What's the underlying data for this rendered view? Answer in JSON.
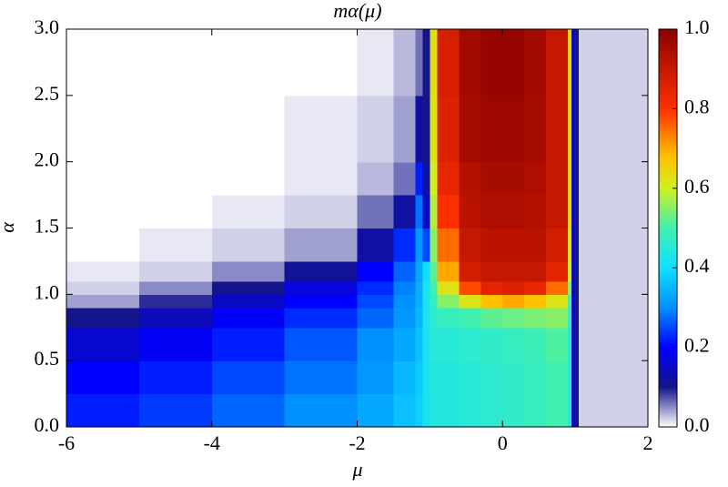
{
  "chart_data": {
    "type": "heatmap",
    "title": "mα(μ)",
    "x_label": "μ",
    "y_label": "α",
    "x_edges": [
      -6,
      -5,
      -4,
      -3,
      -2,
      -1.5,
      -1.2,
      -1.1,
      -1.0,
      -0.9,
      -0.6,
      -0.3,
      0,
      0.3,
      0.6,
      0.9,
      0.95,
      1.0,
      1.05,
      1.1,
      1.5,
      2
    ],
    "y_edges": [
      0,
      0.25,
      0.5,
      0.75,
      0.9,
      1.0,
      1.1,
      1.25,
      1.5,
      1.75,
      2.0,
      2.5,
      3.0
    ],
    "z": [
      [
        0.22,
        0.24,
        0.27,
        0.3,
        0.33,
        0.36,
        0.38,
        0.42,
        0.44,
        0.44,
        0.45,
        0.46,
        0.47,
        0.48,
        0.5,
        0.45,
        0.15,
        0.1,
        0.02,
        0.02,
        0.02
      ],
      [
        0.2,
        0.22,
        0.25,
        0.28,
        0.31,
        0.35,
        0.37,
        0.42,
        0.44,
        0.44,
        0.45,
        0.46,
        0.47,
        0.48,
        0.5,
        0.45,
        0.15,
        0.1,
        0.02,
        0.02,
        0.02
      ],
      [
        0.16,
        0.19,
        0.22,
        0.26,
        0.3,
        0.33,
        0.36,
        0.42,
        0.45,
        0.45,
        0.46,
        0.47,
        0.48,
        0.49,
        0.51,
        0.45,
        0.15,
        0.1,
        0.02,
        0.02,
        0.02
      ],
      [
        0.1,
        0.14,
        0.19,
        0.23,
        0.27,
        0.31,
        0.35,
        0.42,
        0.46,
        0.48,
        0.5,
        0.52,
        0.53,
        0.54,
        0.55,
        0.47,
        0.15,
        0.1,
        0.02,
        0.02,
        0.02
      ],
      [
        0.04,
        0.09,
        0.15,
        0.2,
        0.25,
        0.3,
        0.34,
        0.42,
        0.48,
        0.55,
        0.62,
        0.68,
        0.7,
        0.68,
        0.62,
        0.5,
        0.15,
        0.1,
        0.02,
        0.02,
        0.02
      ],
      [
        0.02,
        0.05,
        0.1,
        0.17,
        0.23,
        0.29,
        0.34,
        0.42,
        0.5,
        0.62,
        0.78,
        0.85,
        0.86,
        0.84,
        0.75,
        0.55,
        0.15,
        0.1,
        0.02,
        0.02,
        0.02
      ],
      [
        0.01,
        0.02,
        0.05,
        0.11,
        0.2,
        0.27,
        0.33,
        0.4,
        0.52,
        0.7,
        0.88,
        0.9,
        0.9,
        0.9,
        0.85,
        0.6,
        0.15,
        0.1,
        0.02,
        0.02,
        0.02
      ],
      [
        0,
        0.01,
        0.02,
        0.04,
        0.12,
        0.23,
        0.31,
        0.25,
        0.55,
        0.75,
        0.9,
        0.92,
        0.92,
        0.92,
        0.88,
        0.62,
        0.15,
        0.1,
        0.02,
        0.02,
        0.02
      ],
      [
        0,
        0,
        0.01,
        0.02,
        0.06,
        0.12,
        0.28,
        0.15,
        0.58,
        0.8,
        0.92,
        0.94,
        0.94,
        0.93,
        0.9,
        0.65,
        0.15,
        0.1,
        0.02,
        0.02,
        0.02
      ],
      [
        0,
        0,
        0,
        0.01,
        0.03,
        0.06,
        0.22,
        0.12,
        0.6,
        0.84,
        0.93,
        0.95,
        0.95,
        0.94,
        0.9,
        0.65,
        0.15,
        0.1,
        0.02,
        0.02,
        0.02
      ],
      [
        0,
        0,
        0,
        0.01,
        0.02,
        0.04,
        0.12,
        0.1,
        0.62,
        0.86,
        0.95,
        0.97,
        0.97,
        0.95,
        0.9,
        0.65,
        0.15,
        0.1,
        0.02,
        0.02,
        0.02
      ],
      [
        0,
        0,
        0,
        0,
        0.01,
        0.03,
        0.06,
        0.1,
        0.63,
        0.87,
        0.96,
        0.98,
        0.98,
        0.96,
        0.9,
        0.65,
        0.15,
        0.1,
        0.02,
        0.02,
        0.02
      ]
    ],
    "xlim": [
      -6,
      2
    ],
    "xticks": [
      -6,
      -4,
      -2,
      0,
      2
    ],
    "ylim": [
      0,
      3
    ],
    "yticks": [
      {
        "value": 0,
        "label": "0.0"
      },
      {
        "value": 0.5,
        "label": "0.5"
      },
      {
        "value": 1,
        "label": "1.0"
      },
      {
        "value": 1.5,
        "label": "1.5"
      },
      {
        "value": 2,
        "label": "2.0"
      },
      {
        "value": 2.5,
        "label": "2.5"
      },
      {
        "value": 3,
        "label": "3.0"
      }
    ],
    "zlim": [
      0,
      1
    ],
    "zticks": [
      {
        "value": 0,
        "label": "0.0"
      },
      {
        "value": 0.2,
        "label": "0.2"
      },
      {
        "value": 0.4,
        "label": "0.4"
      },
      {
        "value": 0.6,
        "label": "0.6"
      },
      {
        "value": 0.8,
        "label": "0.8"
      },
      {
        "value": 1,
        "label": "1.0"
      }
    ],
    "colorscale": [
      [
        0,
        "#ffffff"
      ],
      [
        0.1,
        "#14148c"
      ],
      [
        0.2,
        "#0000ff"
      ],
      [
        0.3,
        "#0090ff"
      ],
      [
        0.4,
        "#10e0ff"
      ],
      [
        0.5,
        "#40f0b0"
      ],
      [
        0.6,
        "#d0f020"
      ],
      [
        0.68,
        "#ffc000"
      ],
      [
        0.8,
        "#ff3000"
      ],
      [
        1,
        "#8b0000"
      ]
    ]
  }
}
